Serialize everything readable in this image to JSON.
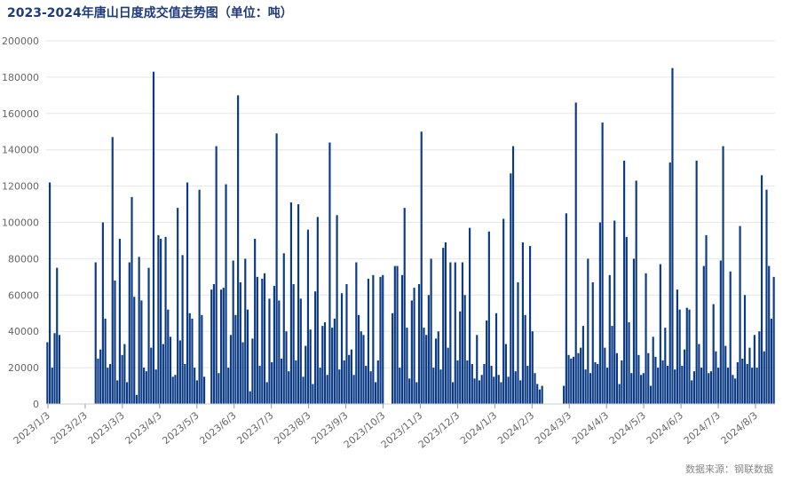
{
  "chart_data": {
    "type": "bar",
    "title": "2023-2024年唐山日度成交值走势图（单位：吨）",
    "source": "数据来源：钢联数据",
    "bar_color": "#0b3b85",
    "ylim": [
      0,
      200000
    ],
    "yticks": [
      "0",
      "20000",
      "40000",
      "60000",
      "80000",
      "100000",
      "120000",
      "140000",
      "160000",
      "180000",
      "200000"
    ],
    "xticks": [
      "2023/1/3",
      "2023/2/3",
      "2023/3/3",
      "2023/4/3",
      "2023/5/3",
      "2023/6/3",
      "2023/7/3",
      "2023/8/3",
      "2023/9/3",
      "2023/10/3",
      "2023/11/3",
      "2023/12/3",
      "2024/1/3",
      "2024/2/3",
      "2024/3/3",
      "2024/4/3",
      "2024/5/3",
      "2024/6/3",
      "2024/7/3",
      "2024/8/3"
    ],
    "values": [
      34000,
      122000,
      20000,
      39000,
      75000,
      38000,
      null,
      null,
      null,
      null,
      null,
      null,
      null,
      null,
      null,
      null,
      null,
      null,
      null,
      null,
      78000,
      25000,
      30000,
      100000,
      47000,
      20000,
      22000,
      147000,
      68000,
      13000,
      91000,
      27000,
      33000,
      12000,
      78000,
      114000,
      59000,
      5000,
      81000,
      57000,
      20000,
      18000,
      75000,
      31000,
      183000,
      19000,
      93000,
      91000,
      33000,
      92000,
      52000,
      37000,
      15000,
      16000,
      108000,
      35000,
      82000,
      22000,
      122000,
      50000,
      47000,
      20000,
      13000,
      118000,
      49000,
      15000,
      null,
      null,
      63000,
      66000,
      142000,
      17000,
      63000,
      64000,
      121000,
      20000,
      38000,
      79000,
      49000,
      170000,
      67000,
      34000,
      80000,
      52000,
      7000,
      36000,
      91000,
      70000,
      21000,
      69000,
      72000,
      12000,
      58000,
      23000,
      65000,
      149000,
      57000,
      25000,
      83000,
      40000,
      18000,
      111000,
      66000,
      24000,
      110000,
      58000,
      15000,
      32000,
      96000,
      41000,
      11000,
      62000,
      103000,
      20000,
      43000,
      45000,
      16000,
      144000,
      42000,
      47000,
      104000,
      19000,
      61000,
      24000,
      66000,
      27000,
      30000,
      16000,
      78000,
      49000,
      40000,
      38000,
      21000,
      69000,
      18000,
      71000,
      12000,
      24000,
      70000,
      71000,
      null,
      null,
      null,
      50000,
      76000,
      76000,
      20000,
      71000,
      108000,
      42000,
      14000,
      57000,
      64000,
      12000,
      66000,
      150000,
      42000,
      38000,
      60000,
      80000,
      20000,
      36000,
      40000,
      19000,
      86000,
      89000,
      31000,
      78000,
      12000,
      78000,
      24000,
      51000,
      78000,
      60000,
      24000,
      97000,
      22000,
      14000,
      38000,
      13000,
      16000,
      22000,
      46000,
      95000,
      21000,
      15000,
      50000,
      16000,
      12000,
      102000,
      33000,
      15000,
      127000,
      142000,
      18000,
      67000,
      13000,
      89000,
      49000,
      21000,
      87000,
      40000,
      17000,
      11000,
      8000,
      10000,
      null,
      null,
      null,
      null,
      null,
      null,
      null,
      null,
      10000,
      105000,
      27000,
      25000,
      26000,
      166000,
      28000,
      31000,
      43000,
      19000,
      80000,
      17000,
      67000,
      23000,
      22000,
      100000,
      155000,
      31000,
      20000,
      71000,
      43000,
      101000,
      28000,
      11000,
      24000,
      134000,
      92000,
      45000,
      17000,
      80000,
      123000,
      27000,
      16000,
      17000,
      72000,
      28000,
      10000,
      37000,
      26000,
      20000,
      77000,
      24000,
      42000,
      21000,
      133000,
      185000,
      19000,
      63000,
      52000,
      21000,
      30000,
      53000,
      52000,
      13000,
      18000,
      134000,
      33000,
      20000,
      76000,
      93000,
      17000,
      18000,
      55000,
      29000,
      20000,
      79000,
      142000,
      32000,
      20000,
      73000,
      16000,
      14000,
      23000,
      98000,
      25000,
      60000,
      22000,
      31000,
      20000,
      38000,
      20000,
      40000,
      126000,
      29000,
      118000,
      76000,
      47000,
      70000
    ]
  }
}
